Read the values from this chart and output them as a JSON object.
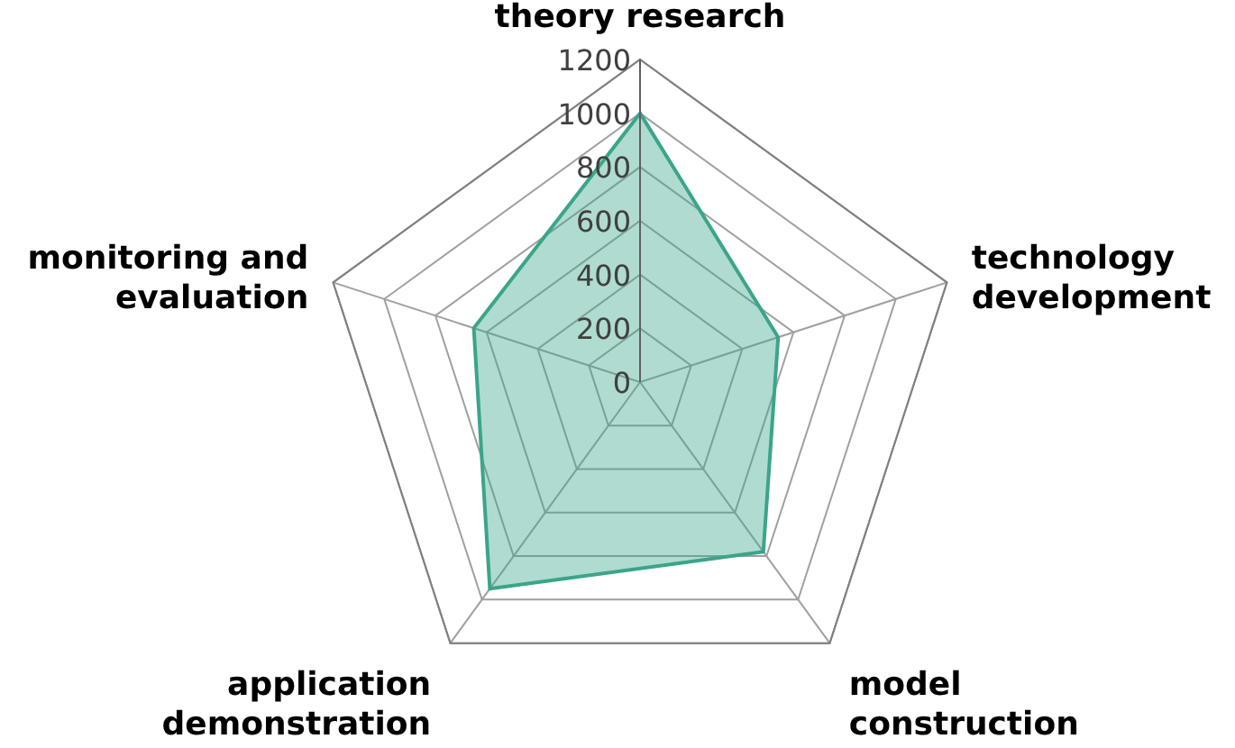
{
  "chart_data": {
    "type": "radar",
    "categories": [
      "theory research",
      "technology development",
      "model construction",
      "application demonstration",
      "monitoring and evaluation"
    ],
    "series": [
      {
        "color": "#3aa58a",
        "values": [
          1000,
          540,
          780,
          950,
          650
        ]
      }
    ],
    "ylim": [
      0,
      1200
    ],
    "yticks": [
      0,
      200,
      400,
      600,
      800,
      1000,
      1200
    ],
    "grid": true
  }
}
